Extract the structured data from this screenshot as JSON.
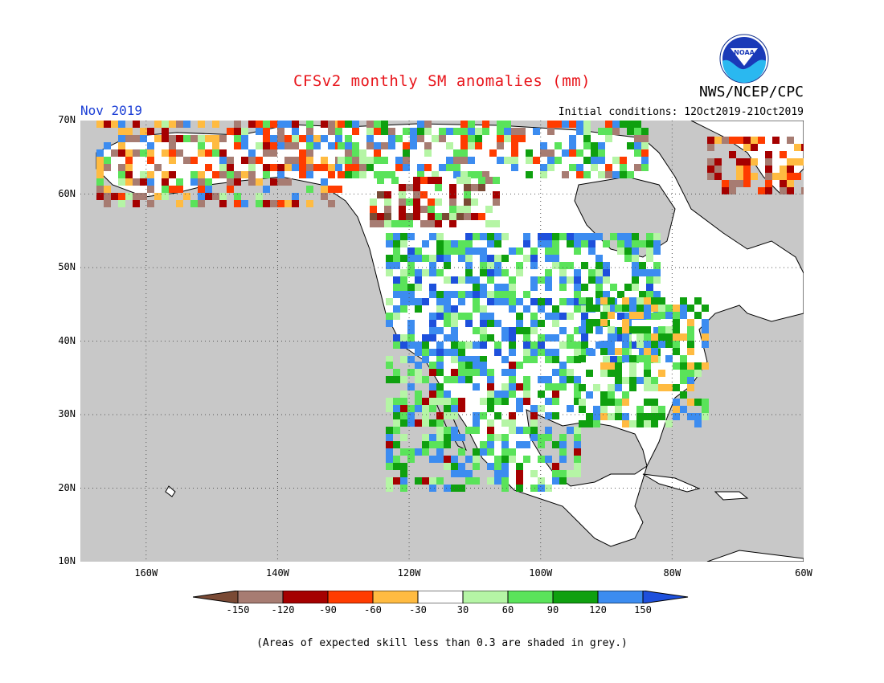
{
  "title": "CFSv2 monthly SM anomalies (mm)",
  "month": "Nov 2019",
  "agency": "NWS/NCEP/CPC",
  "logo_text": "NOAA",
  "initial_conditions": "Initial conditions: 12Oct2019-21Oct2019",
  "lat_labels": [
    "70N",
    "60N",
    "50N",
    "40N",
    "30N",
    "20N",
    "10N"
  ],
  "lon_labels": [
    "160W",
    "140W",
    "120W",
    "100W",
    "80W",
    "60W"
  ],
  "colorbar": {
    "labels": [
      "-150",
      "-120",
      "-90",
      "-60",
      "-30",
      "30",
      "60",
      "90",
      "120",
      "150"
    ],
    "colors": [
      "#7a4a35",
      "#a77c72",
      "#a50000",
      "#ff3c00",
      "#ffbb41",
      "#ffffff",
      "#b5f5a5",
      "#5ae35a",
      "#0fa00f",
      "#3c8cf0",
      "#1e50dc"
    ]
  },
  "footnote": "(Areas of expected skill less than 0.3 are shaded in grey.)",
  "colors": {
    "ocean": "#c8c8c8",
    "title": "#e8151b",
    "month": "#1c3fd6"
  }
}
